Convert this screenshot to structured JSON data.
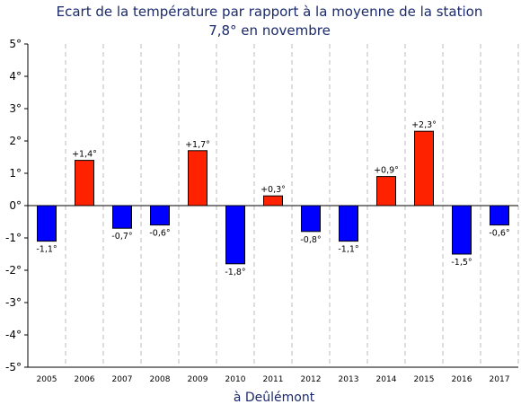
{
  "chart_data": {
    "type": "bar",
    "title": "Ecart de la température par rapport à la moyenne de la station",
    "subtitle": "7,8° en novembre",
    "xlabel": "à Deûlémont",
    "ylabel": "",
    "ylim": [
      -5,
      5
    ],
    "yticks": [
      "5°",
      "4°",
      "3°",
      "2°",
      "1°",
      "0°",
      "-1°",
      "-2°",
      "-3°",
      "-4°",
      "-5°"
    ],
    "categories": [
      "2005",
      "2006",
      "2007",
      "2008",
      "2009",
      "2010",
      "2011",
      "2012",
      "2013",
      "2014",
      "2015",
      "2016",
      "2017"
    ],
    "values": [
      -1.1,
      1.4,
      -0.7,
      -0.6,
      1.7,
      -1.8,
      0.3,
      -0.8,
      -1.1,
      0.9,
      2.3,
      -1.5,
      -0.6
    ],
    "data_labels": [
      "-1,1°",
      "+1,4°",
      "-0,7°",
      "-0,6°",
      "+1,7°",
      "-1,8°",
      "+0,3°",
      "-0,8°",
      "-1,1°",
      "+0,9°",
      "+2,3°",
      "-1,5°",
      "-0,6°"
    ],
    "grid": "vertical dashed",
    "colors": {
      "positive": "#ff2200",
      "negative": "#0000ff",
      "grid": "#bbbbbb",
      "title": "#1a2a6c"
    }
  }
}
